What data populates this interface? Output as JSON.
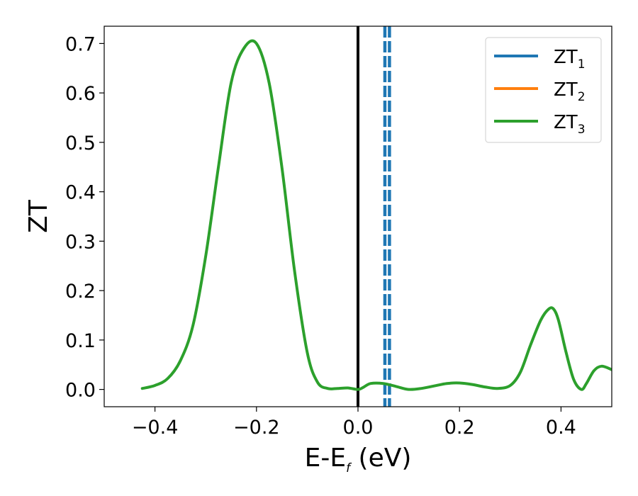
{
  "chart_data": {
    "type": "line",
    "title": "",
    "xlabel": "E-E",
    "xlabel_sub": "f",
    "xlabel_unit": " (eV)",
    "ylabel": "ZT",
    "xlim": [
      -0.5,
      0.5
    ],
    "ylim": [
      -0.035,
      0.735
    ],
    "xticks": [
      -0.4,
      -0.2,
      0.0,
      0.2,
      0.4
    ],
    "xtick_labels": [
      "−0.4",
      "−0.2",
      "0.0",
      "0.2",
      "0.4"
    ],
    "yticks": [
      0.0,
      0.1,
      0.2,
      0.3,
      0.4,
      0.5,
      0.6,
      0.7
    ],
    "ytick_labels": [
      "0.0",
      "0.1",
      "0.2",
      "0.3",
      "0.4",
      "0.5",
      "0.6",
      "0.7"
    ],
    "grid": false,
    "legend_position": "top-right",
    "series": [
      {
        "name": "ZT",
        "sub": "1",
        "color": "#1f77b4",
        "x": [],
        "y": []
      },
      {
        "name": "ZT",
        "sub": "2",
        "color": "#ff7f0e",
        "x": [],
        "y": []
      },
      {
        "name": "ZT",
        "sub": "3",
        "color": "#2ca02c",
        "x": [
          -0.425,
          -0.4,
          -0.375,
          -0.35,
          -0.325,
          -0.3,
          -0.275,
          -0.25,
          -0.225,
          -0.2,
          -0.175,
          -0.15,
          -0.125,
          -0.1,
          -0.08,
          -0.06,
          -0.04,
          -0.02,
          0.0,
          0.01,
          0.025,
          0.05,
          0.075,
          0.1,
          0.125,
          0.15,
          0.175,
          0.2,
          0.225,
          0.25,
          0.275,
          0.3,
          0.32,
          0.34,
          0.36,
          0.375,
          0.385,
          0.395,
          0.41,
          0.425,
          0.44,
          0.45,
          0.465,
          0.48,
          0.5
        ],
        "y": [
          0.002,
          0.008,
          0.022,
          0.058,
          0.13,
          0.27,
          0.45,
          0.62,
          0.69,
          0.7,
          0.62,
          0.45,
          0.24,
          0.075,
          0.015,
          0.002,
          0.002,
          0.003,
          0.0,
          0.004,
          0.012,
          0.012,
          0.006,
          0.0,
          0.002,
          0.007,
          0.012,
          0.013,
          0.01,
          0.005,
          0.002,
          0.008,
          0.035,
          0.09,
          0.14,
          0.162,
          0.163,
          0.14,
          0.075,
          0.02,
          0.0,
          0.012,
          0.038,
          0.047,
          0.04
        ]
      }
    ],
    "vlines": [
      {
        "x": 0.0,
        "color": "#000000",
        "style": "solid"
      },
      {
        "x": 0.053,
        "color": "#1f77b4",
        "style": "dashed"
      },
      {
        "x": 0.062,
        "color": "#1f77b4",
        "style": "dashed"
      }
    ]
  }
}
